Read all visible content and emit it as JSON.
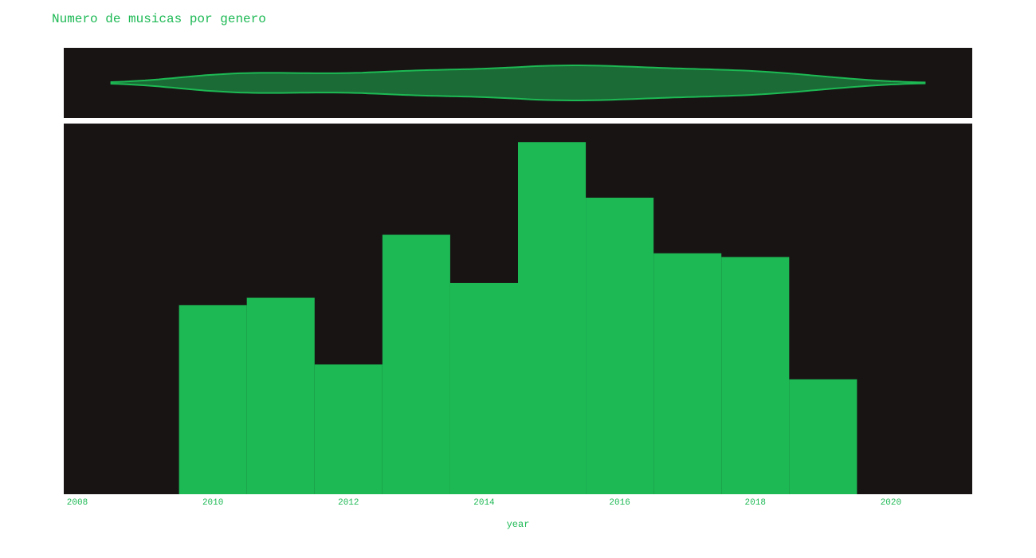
{
  "chart_data": {
    "type": "bar",
    "title": "Numero de musicas por genero",
    "xlabel": "year",
    "ylabel": "",
    "x_ticks": [
      "2008",
      "2010",
      "2012",
      "2014",
      "2016",
      "2018",
      "2020"
    ],
    "xlim": [
      2007.8,
      2021.2
    ],
    "ylim": [
      0,
      100
    ],
    "bin_width": 1,
    "bins": [
      2010,
      2011,
      2012,
      2013,
      2014,
      2015,
      2016,
      2017,
      2018,
      2019
    ],
    "values": [
      51,
      53,
      35,
      70,
      57,
      95,
      80,
      65,
      64,
      31
    ],
    "marginal": "violin",
    "grid": false,
    "colors": {
      "bar": "#1db954",
      "violin_fill": "#1a6b35",
      "violin_line": "#1db954",
      "plot_bg": "#191414",
      "text": "#1db954"
    }
  }
}
